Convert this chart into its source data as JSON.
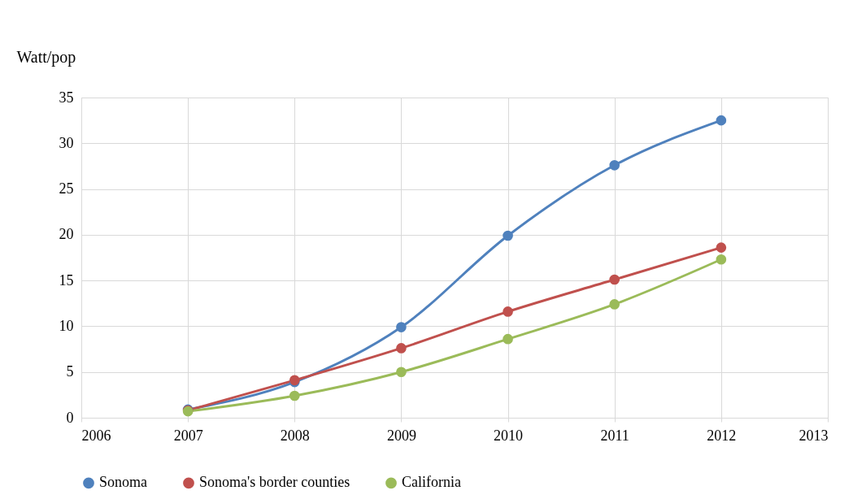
{
  "chart_data": {
    "type": "line",
    "ylabel": "Watt/pop",
    "x": [
      2007,
      2008,
      2009,
      2010,
      2011,
      2012
    ],
    "series": [
      {
        "name": "Sonoma",
        "color": "#4f81bd",
        "values": [
          0.9,
          3.9,
          9.9,
          19.9,
          27.6,
          32.5
        ]
      },
      {
        "name": "Sonoma's border counties",
        "color": "#c0504d",
        "values": [
          0.8,
          4.1,
          7.6,
          11.6,
          15.1,
          18.6
        ]
      },
      {
        "name": "California",
        "color": "#9bbb59",
        "values": [
          0.7,
          2.4,
          5.0,
          8.6,
          12.4,
          17.3
        ]
      }
    ],
    "xlim": [
      2006,
      2013
    ],
    "xticks": [
      2006,
      2007,
      2008,
      2009,
      2010,
      2011,
      2012,
      2013
    ],
    "ylim": [
      0,
      35
    ],
    "yticks": [
      0,
      5,
      10,
      15,
      20,
      25,
      30,
      35
    ],
    "grid": true,
    "legend": "bottom",
    "marker": "circle",
    "line_style": "solid"
  }
}
